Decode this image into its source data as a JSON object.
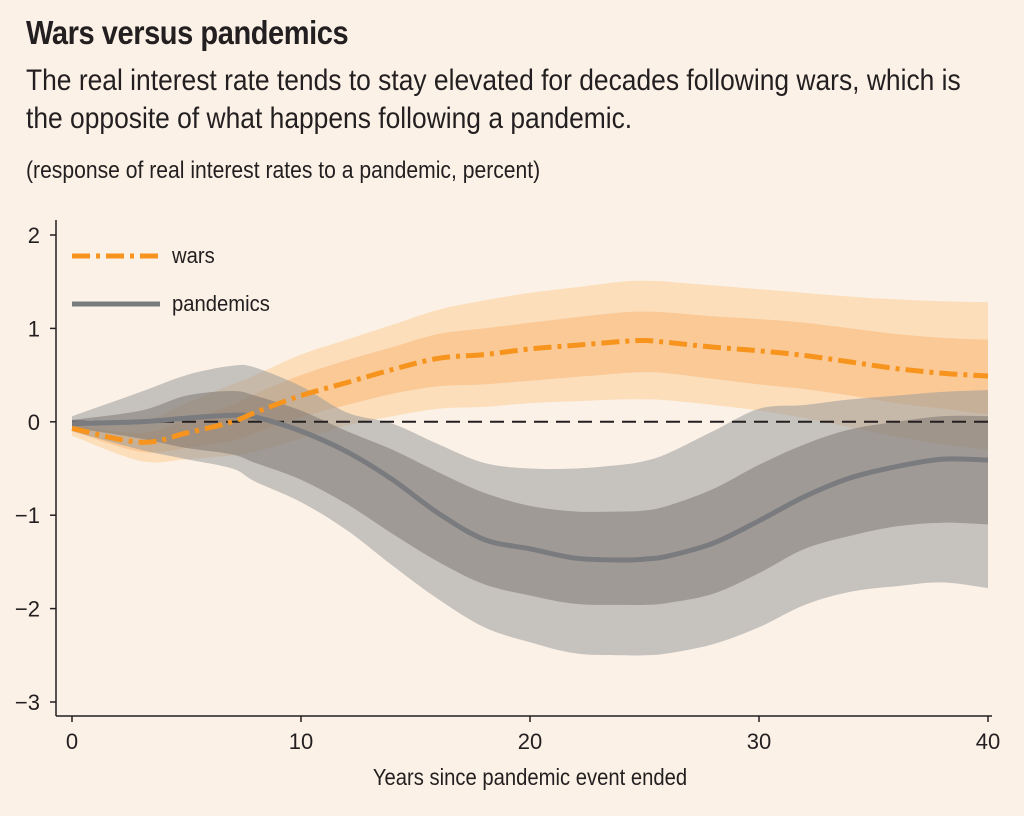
{
  "title": "Wars versus pandemics",
  "subtitle": "The real interest rate tends to stay elevated for decades following wars, which is the opposite of what happens following a pandemic.",
  "unit_label": "(response of real interest rates to a pandemic, percent)",
  "chart_data": {
    "type": "line",
    "xlabel": "Years since pandemic event ended",
    "ylabel": "",
    "xlim": [
      0,
      40
    ],
    "ylim": [
      -3,
      2
    ],
    "x_ticks": [
      0,
      10,
      20,
      30,
      40
    ],
    "x_tick_labels": [
      "0",
      "10",
      "20",
      "30",
      "40"
    ],
    "y_ticks": [
      2,
      1,
      0,
      -1,
      -2,
      -3
    ],
    "y_tick_labels": [
      "2",
      "1",
      "0",
      "−1",
      "−2",
      "−3"
    ],
    "reference_line": 0,
    "legend_position": "top-left",
    "x": [
      0,
      3,
      5,
      7,
      8,
      10,
      12,
      14,
      16,
      18,
      20,
      22,
      24,
      25,
      26,
      28,
      30,
      32,
      34,
      36,
      38,
      40
    ],
    "series": [
      {
        "name": "wars",
        "color": "#f7941d",
        "style": "dash-dot",
        "values": [
          -0.07,
          -0.22,
          -0.12,
          0.0,
          0.1,
          0.28,
          0.42,
          0.56,
          0.68,
          0.72,
          0.78,
          0.82,
          0.86,
          0.87,
          0.85,
          0.8,
          0.76,
          0.71,
          0.64,
          0.57,
          0.52,
          0.49
        ],
        "band_inner": {
          "lower": [
            -0.1,
            -0.32,
            -0.28,
            -0.2,
            -0.12,
            0.05,
            0.18,
            0.3,
            0.38,
            0.4,
            0.44,
            0.48,
            0.52,
            0.53,
            0.52,
            0.46,
            0.4,
            0.35,
            0.28,
            0.2,
            0.14,
            0.08
          ],
          "upper": [
            -0.03,
            -0.12,
            0.02,
            0.18,
            0.3,
            0.5,
            0.66,
            0.8,
            0.94,
            1.0,
            1.06,
            1.12,
            1.17,
            1.18,
            1.17,
            1.13,
            1.1,
            1.06,
            1.0,
            0.94,
            0.9,
            0.88
          ]
        },
        "band_outer": {
          "lower": [
            -0.15,
            -0.42,
            -0.4,
            -0.36,
            -0.32,
            -0.18,
            -0.04,
            0.06,
            0.14,
            0.16,
            0.2,
            0.22,
            0.24,
            0.24,
            0.23,
            0.18,
            0.12,
            0.04,
            -0.06,
            -0.16,
            -0.24,
            -0.3
          ],
          "upper": [
            0.0,
            0.0,
            0.2,
            0.4,
            0.5,
            0.72,
            0.88,
            1.04,
            1.2,
            1.3,
            1.38,
            1.44,
            1.5,
            1.51,
            1.5,
            1.46,
            1.42,
            1.38,
            1.34,
            1.31,
            1.29,
            1.28
          ]
        }
      },
      {
        "name": "pandemics",
        "color": "#7a7b7e",
        "style": "solid",
        "values": [
          -0.02,
          0.0,
          0.04,
          0.07,
          0.05,
          -0.1,
          -0.32,
          -0.62,
          -0.98,
          -1.26,
          -1.36,
          -1.46,
          -1.48,
          -1.47,
          -1.44,
          -1.3,
          -1.06,
          -0.8,
          -0.6,
          -0.48,
          -0.4,
          -0.41
        ],
        "band_inner": {
          "lower": [
            -0.06,
            -0.18,
            -0.28,
            -0.35,
            -0.44,
            -0.62,
            -0.88,
            -1.2,
            -1.5,
            -1.74,
            -1.86,
            -1.95,
            -1.96,
            -1.96,
            -1.94,
            -1.84,
            -1.62,
            -1.36,
            -1.22,
            -1.12,
            -1.08,
            -1.1
          ],
          "upper": [
            0.02,
            0.12,
            0.28,
            0.33,
            0.28,
            0.12,
            -0.1,
            -0.3,
            -0.54,
            -0.76,
            -0.9,
            -0.96,
            -0.96,
            -0.95,
            -0.9,
            -0.72,
            -0.46,
            -0.24,
            -0.08,
            0.0,
            0.06,
            0.06
          ]
        },
        "band_outer": {
          "lower": [
            -0.1,
            -0.3,
            -0.4,
            -0.5,
            -0.64,
            -0.86,
            -1.16,
            -1.54,
            -1.9,
            -2.2,
            -2.36,
            -2.48,
            -2.5,
            -2.5,
            -2.48,
            -2.38,
            -2.2,
            -1.96,
            -1.82,
            -1.76,
            -1.72,
            -1.78
          ],
          "upper": [
            0.06,
            0.32,
            0.5,
            0.6,
            0.58,
            0.38,
            0.1,
            -0.02,
            -0.24,
            -0.44,
            -0.5,
            -0.5,
            -0.46,
            -0.42,
            -0.34,
            -0.1,
            0.14,
            0.18,
            0.24,
            0.28,
            0.32,
            0.34
          ]
        }
      }
    ]
  }
}
